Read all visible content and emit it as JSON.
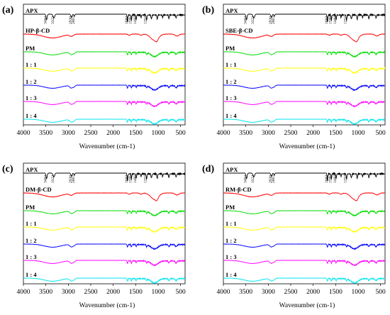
{
  "chart_data": [
    {
      "type": "line",
      "panel_label": "(a)",
      "cd_label": "HP-β-CD",
      "xlabel": "Wavenumber (cm-1)",
      "xlim": [
        4000,
        400
      ],
      "xticks": [
        "4000",
        "3500",
        "3000",
        "2500",
        "2000",
        "1500",
        "1000",
        "500"
      ],
      "series": [
        {
          "name": "APX",
          "color": "#000000"
        },
        {
          "name": "HP-β-CD",
          "color": "#ff0000"
        },
        {
          "name": "PM",
          "color": "#00dd00"
        },
        {
          "name": "1 : 1",
          "color": "#ffff00"
        },
        {
          "name": "1 : 2",
          "color": "#0000ff"
        },
        {
          "name": "1 : 3",
          "color": "#ff00ff"
        },
        {
          "name": "1 : 4",
          "color": "#00e5ee"
        }
      ],
      "peak_annotations": [
        "3484",
        "3322",
        "2930",
        "2867",
        "1682",
        "1595",
        "1488",
        "1257"
      ]
    },
    {
      "type": "line",
      "panel_label": "(b)",
      "cd_label": "SBE-β-CD",
      "xlabel": "Wavenumber (cm-1)",
      "xlim": [
        4000,
        400
      ],
      "xticks": [
        "4000",
        "3500",
        "3000",
        "2500",
        "2000",
        "1500",
        "1000",
        "500"
      ],
      "series": [
        {
          "name": "APX",
          "color": "#000000"
        },
        {
          "name": "SBE-β-CD",
          "color": "#ff0000"
        },
        {
          "name": "PM",
          "color": "#00dd00"
        },
        {
          "name": "1 : 1",
          "color": "#ffff00"
        },
        {
          "name": "1 : 2",
          "color": "#0000ff"
        },
        {
          "name": "1 : 3",
          "color": "#ff00ff"
        },
        {
          "name": "1 : 4",
          "color": "#00e5ee"
        }
      ],
      "peak_annotations": [
        "3484",
        "3322",
        "2930",
        "2867",
        "1682",
        "1595",
        "1488",
        "1257"
      ]
    },
    {
      "type": "line",
      "panel_label": "(c)",
      "cd_label": "DM-β-CD",
      "xlabel": "Wavenumber (cm-1)",
      "xlim": [
        4000,
        400
      ],
      "xticks": [
        "4000",
        "3500",
        "3000",
        "2500",
        "2000",
        "1500",
        "1000",
        "500"
      ],
      "series": [
        {
          "name": "APX",
          "color": "#000000"
        },
        {
          "name": "DM-β-CD",
          "color": "#ff0000"
        },
        {
          "name": "PM",
          "color": "#00dd00"
        },
        {
          "name": "1 : 1",
          "color": "#ffff00"
        },
        {
          "name": "1 : 2",
          "color": "#0000ff"
        },
        {
          "name": "1 : 3",
          "color": "#ff00ff"
        },
        {
          "name": "1 : 4",
          "color": "#00e5ee"
        }
      ],
      "peak_annotations": [
        "3484",
        "3322",
        "2930",
        "2867",
        "1682",
        "1595",
        "1488",
        "1257"
      ]
    },
    {
      "type": "line",
      "panel_label": "(d)",
      "cd_label": "RM-β-CD",
      "xlabel": "Wavenumber (cm-1)",
      "xlim": [
        4000,
        400
      ],
      "xticks": [
        "4000",
        "3500",
        "3000",
        "2500",
        "2000",
        "1500",
        "1000",
        "500"
      ],
      "series": [
        {
          "name": "APX",
          "color": "#000000"
        },
        {
          "name": "RM-β-CD",
          "color": "#ff0000"
        },
        {
          "name": "PM",
          "color": "#00dd00"
        },
        {
          "name": "1 : 1",
          "color": "#ffff00"
        },
        {
          "name": "1 : 2",
          "color": "#0000ff"
        },
        {
          "name": "1 : 3",
          "color": "#ff00ff"
        },
        {
          "name": "1 : 4",
          "color": "#00e5ee"
        }
      ],
      "peak_annotations": [
        "3484",
        "3322",
        "2930",
        "2867",
        "1682",
        "1595",
        "1488",
        "1257"
      ]
    }
  ]
}
